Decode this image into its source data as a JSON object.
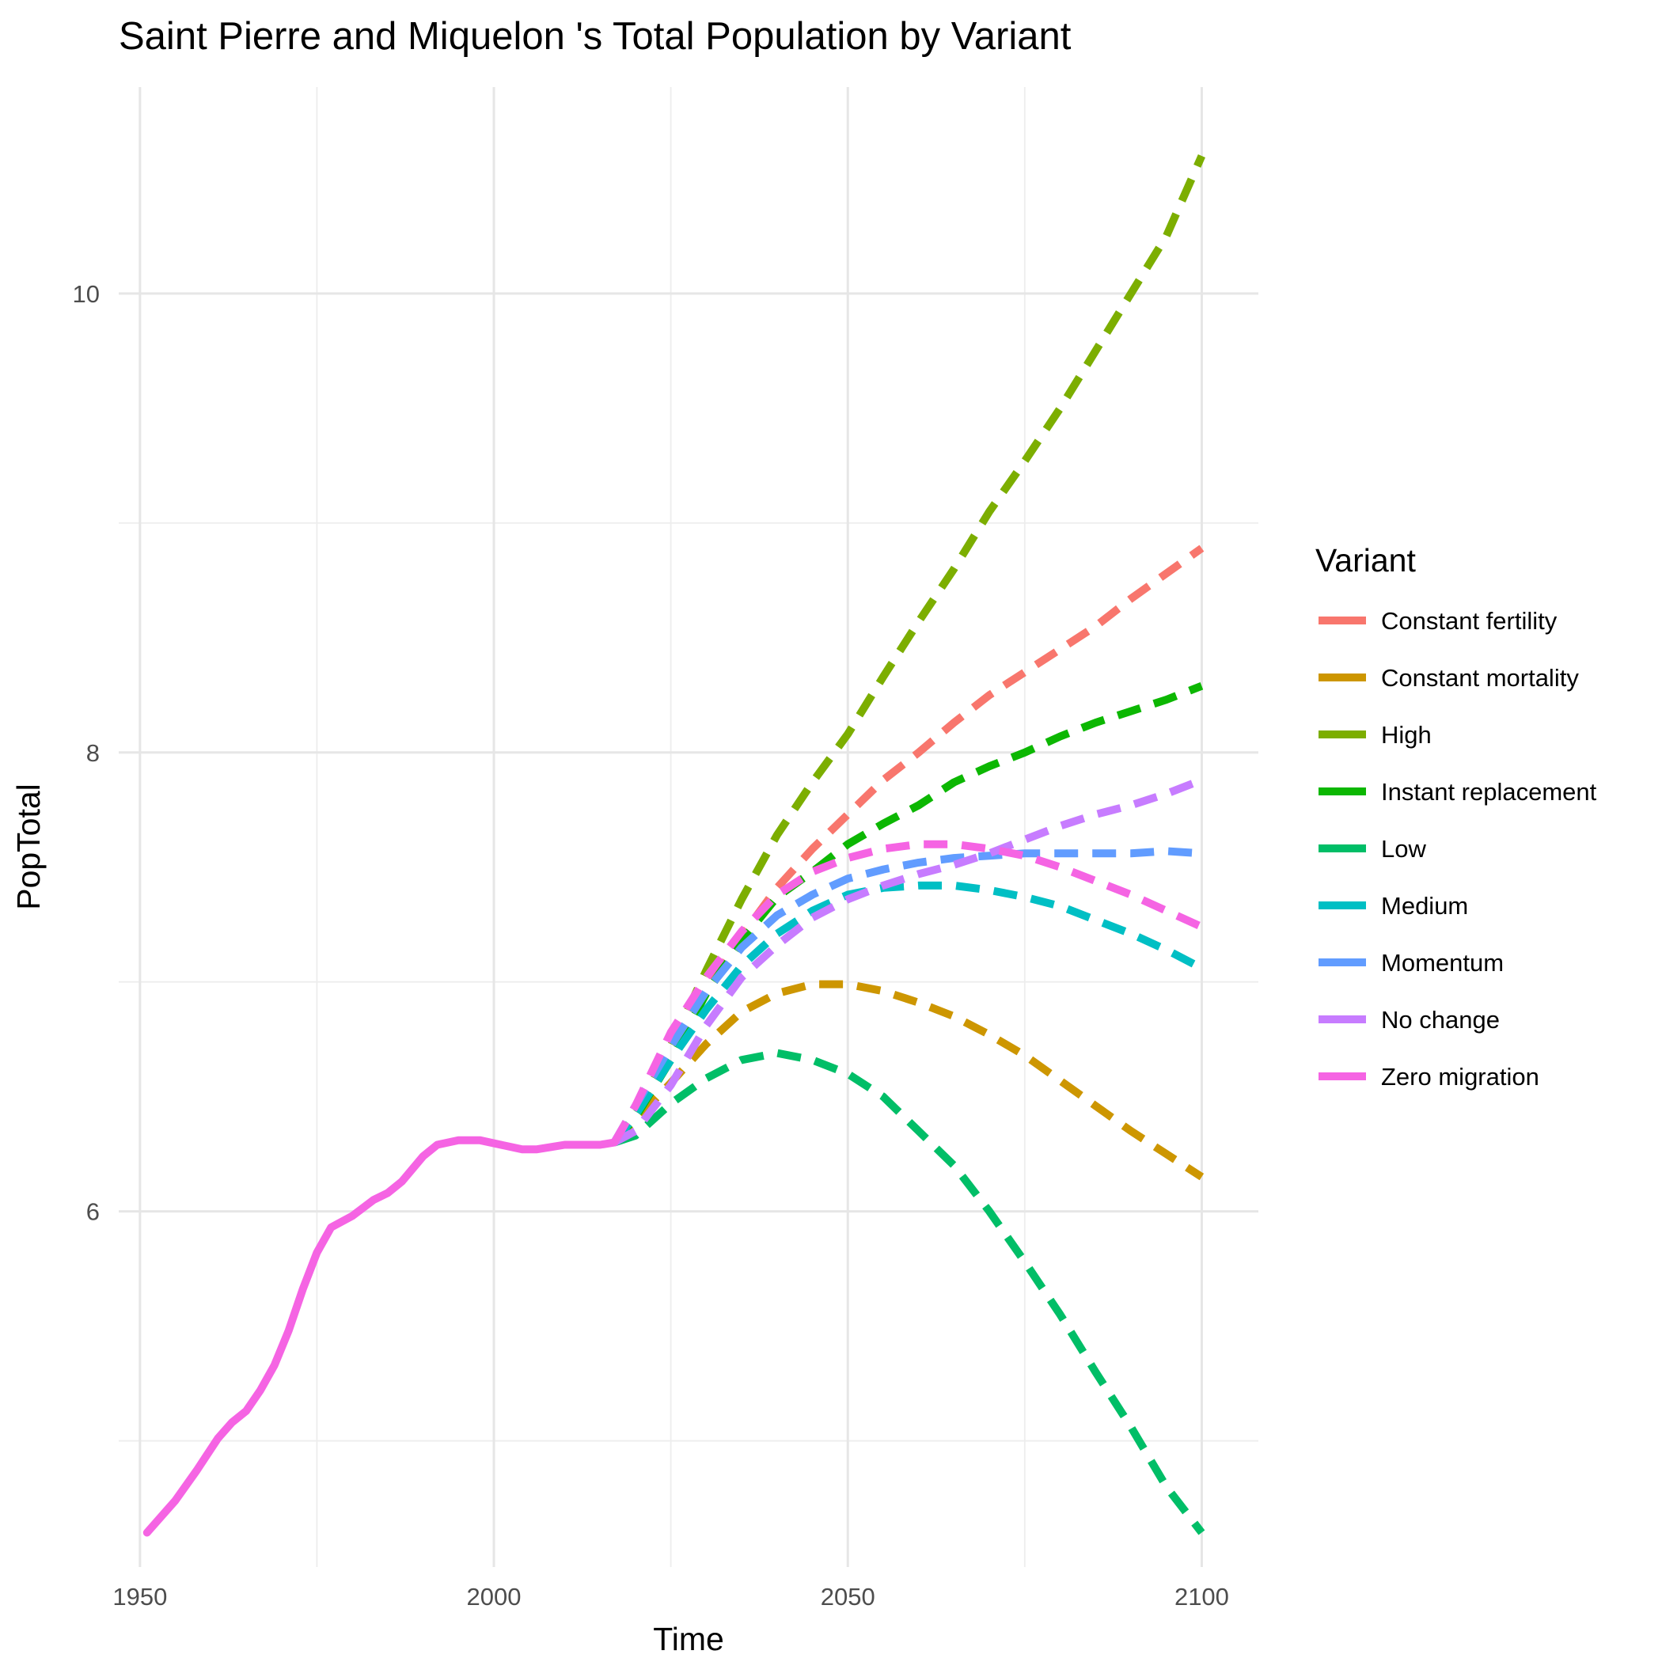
{
  "chart_data": {
    "type": "line",
    "title": "Saint Pierre and Miquelon 's Total Population by Variant",
    "xlabel": "Time",
    "ylabel": "PopTotal",
    "xlim": [
      1947,
      2108
    ],
    "ylim": [
      4.45,
      10.9
    ],
    "x_ticks": [
      1950,
      2000,
      2050,
      2100
    ],
    "x_tick_labels": [
      "1950",
      "2000",
      "2050",
      "2100"
    ],
    "y_ticks": [
      6,
      8,
      10
    ],
    "y_tick_labels": [
      "6",
      "8",
      "10"
    ],
    "y_minor_ticks": [
      5,
      7,
      9
    ],
    "x_minor_ticks": [
      1975,
      2025,
      2075
    ],
    "grid": true,
    "legend": {
      "title": "Variant",
      "position": "right"
    },
    "historical": {
      "name": "Zero migration",
      "x": [
        1951,
        1955,
        1958,
        1961,
        1963,
        1965,
        1967,
        1969,
        1971,
        1973,
        1975,
        1977,
        1980,
        1983,
        1985,
        1987,
        1990,
        1992,
        1995,
        1998,
        2001,
        2004,
        2006,
        2008,
        2010,
        2013,
        2015,
        2017
      ],
      "y": [
        4.6,
        4.74,
        4.87,
        5.01,
        5.08,
        5.13,
        5.22,
        5.33,
        5.48,
        5.66,
        5.82,
        5.93,
        5.98,
        6.05,
        6.08,
        6.13,
        6.24,
        6.29,
        6.31,
        6.31,
        6.29,
        6.27,
        6.27,
        6.28,
        6.29,
        6.29,
        6.29,
        6.3
      ]
    },
    "series": [
      {
        "name": "Constant fertility",
        "color": "#F8766D",
        "x": [
          2017,
          2020,
          2025,
          2030,
          2035,
          2040,
          2045,
          2050,
          2055,
          2060,
          2065,
          2070,
          2075,
          2080,
          2085,
          2090,
          2095,
          2100
        ],
        "y": [
          6.3,
          6.42,
          6.68,
          6.96,
          7.2,
          7.41,
          7.58,
          7.73,
          7.88,
          8.0,
          8.13,
          8.25,
          8.35,
          8.45,
          8.55,
          8.67,
          8.78,
          8.89
        ]
      },
      {
        "name": "Constant mortality",
        "color": "#CD9600",
        "x": [
          2017,
          2020,
          2025,
          2030,
          2035,
          2040,
          2045,
          2050,
          2055,
          2060,
          2065,
          2070,
          2075,
          2080,
          2085,
          2090,
          2095,
          2100
        ],
        "y": [
          6.3,
          6.4,
          6.56,
          6.73,
          6.87,
          6.95,
          6.99,
          6.99,
          6.96,
          6.91,
          6.85,
          6.77,
          6.68,
          6.57,
          6.46,
          6.35,
          6.25,
          6.15
        ]
      },
      {
        "name": "High",
        "color": "#7CAE00",
        "x": [
          2017,
          2020,
          2025,
          2030,
          2035,
          2040,
          2045,
          2050,
          2055,
          2060,
          2065,
          2070,
          2075,
          2080,
          2085,
          2090,
          2095,
          2100
        ],
        "y": [
          6.3,
          6.42,
          6.72,
          7.05,
          7.36,
          7.64,
          7.87,
          8.08,
          8.33,
          8.57,
          8.8,
          9.05,
          9.27,
          9.5,
          9.75,
          10.0,
          10.25,
          10.6
        ]
      },
      {
        "name": "Instant replacement",
        "color": "#0CB702",
        "x": [
          2017,
          2020,
          2025,
          2030,
          2035,
          2040,
          2045,
          2050,
          2055,
          2060,
          2065,
          2070,
          2075,
          2080,
          2085,
          2090,
          2095,
          2100
        ],
        "y": [
          6.3,
          6.41,
          6.66,
          6.95,
          7.18,
          7.37,
          7.48,
          7.6,
          7.69,
          7.77,
          7.87,
          7.94,
          8.0,
          8.07,
          8.13,
          8.18,
          8.23,
          8.29
        ]
      },
      {
        "name": "Low",
        "color": "#00BE67",
        "x": [
          2017,
          2020,
          2025,
          2030,
          2035,
          2040,
          2045,
          2050,
          2055,
          2060,
          2065,
          2070,
          2075,
          2080,
          2085,
          2090,
          2095,
          2100
        ],
        "y": [
          6.3,
          6.33,
          6.47,
          6.58,
          6.66,
          6.69,
          6.66,
          6.6,
          6.5,
          6.35,
          6.2,
          6.0,
          5.78,
          5.55,
          5.3,
          5.06,
          4.8,
          4.6
        ]
      },
      {
        "name": "Medium",
        "color": "#00BFC4",
        "x": [
          2017,
          2020,
          2025,
          2030,
          2035,
          2040,
          2045,
          2050,
          2055,
          2060,
          2065,
          2070,
          2075,
          2080,
          2085,
          2090,
          2095,
          2100
        ],
        "y": [
          6.3,
          6.42,
          6.66,
          6.88,
          7.07,
          7.21,
          7.31,
          7.38,
          7.41,
          7.42,
          7.42,
          7.4,
          7.37,
          7.33,
          7.27,
          7.21,
          7.14,
          7.06
        ]
      },
      {
        "name": "Momentum",
        "color": "#619CFF",
        "x": [
          2017,
          2020,
          2025,
          2030,
          2035,
          2040,
          2045,
          2050,
          2055,
          2060,
          2065,
          2070,
          2075,
          2080,
          2085,
          2090,
          2095,
          2100
        ],
        "y": [
          6.3,
          6.46,
          6.72,
          6.96,
          7.15,
          7.29,
          7.38,
          7.45,
          7.49,
          7.52,
          7.54,
          7.55,
          7.56,
          7.56,
          7.56,
          7.56,
          7.57,
          7.56
        ]
      },
      {
        "name": "No change",
        "color": "#C77CFF",
        "x": [
          2017,
          2020,
          2025,
          2030,
          2035,
          2040,
          2045,
          2050,
          2055,
          2060,
          2065,
          2070,
          2075,
          2080,
          2085,
          2090,
          2095,
          2100
        ],
        "y": [
          6.3,
          6.35,
          6.55,
          6.81,
          7.02,
          7.16,
          7.28,
          7.36,
          7.42,
          7.47,
          7.51,
          7.56,
          7.62,
          7.68,
          7.73,
          7.77,
          7.82,
          7.88
        ]
      },
      {
        "name": "Zero migration",
        "color": "#F564E3",
        "x": [
          2017,
          2020,
          2025,
          2030,
          2035,
          2040,
          2045,
          2050,
          2055,
          2060,
          2065,
          2070,
          2075,
          2080,
          2085,
          2090,
          2095,
          2100
        ],
        "y": [
          6.3,
          6.46,
          6.78,
          7.02,
          7.22,
          7.38,
          7.48,
          7.54,
          7.58,
          7.6,
          7.6,
          7.58,
          7.55,
          7.5,
          7.44,
          7.38,
          7.31,
          7.24
        ]
      }
    ]
  }
}
